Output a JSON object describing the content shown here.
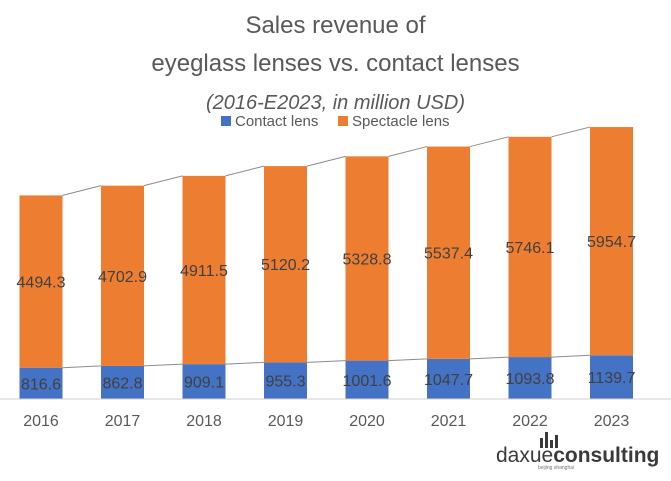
{
  "chart_data": {
    "type": "bar",
    "stacked": true,
    "title": "Sales revenue of",
    "title_line2": "eyeglass lenses vs. contact lenses",
    "subtitle": "(2016-E2023, in million USD)",
    "categories": [
      "2016",
      "2017",
      "2018",
      "2019",
      "2020",
      "2021",
      "2022",
      "2023"
    ],
    "series": [
      {
        "name": "Contact lens",
        "color": "#4472C4",
        "values": [
          816.6,
          862.8,
          909.1,
          955.3,
          1001.6,
          1047.7,
          1093.8,
          1139.7
        ],
        "labels": [
          "816.6",
          "862.8",
          "909.1",
          "955.3",
          "1001.6",
          "1047.7",
          "1093.8",
          "1139.7"
        ]
      },
      {
        "name": "Spectacle lens",
        "color": "#ED7D31",
        "values": [
          4494.3,
          4702.9,
          4911.5,
          5120.2,
          5328.8,
          5537.4,
          5746.1,
          5954.7
        ],
        "labels": [
          "4494.3",
          "4702.9",
          "4911.5",
          "5120.2",
          "5328.8",
          "5537.4",
          "5746.1",
          "5954.7"
        ]
      }
    ],
    "legend": "top",
    "series_lines": true,
    "grid": false,
    "ylim": [
      0,
      7800
    ]
  },
  "branding": {
    "logo_a": "daxue",
    "logo_b": "consulting",
    "logo_sub": "beijing shanghai"
  }
}
